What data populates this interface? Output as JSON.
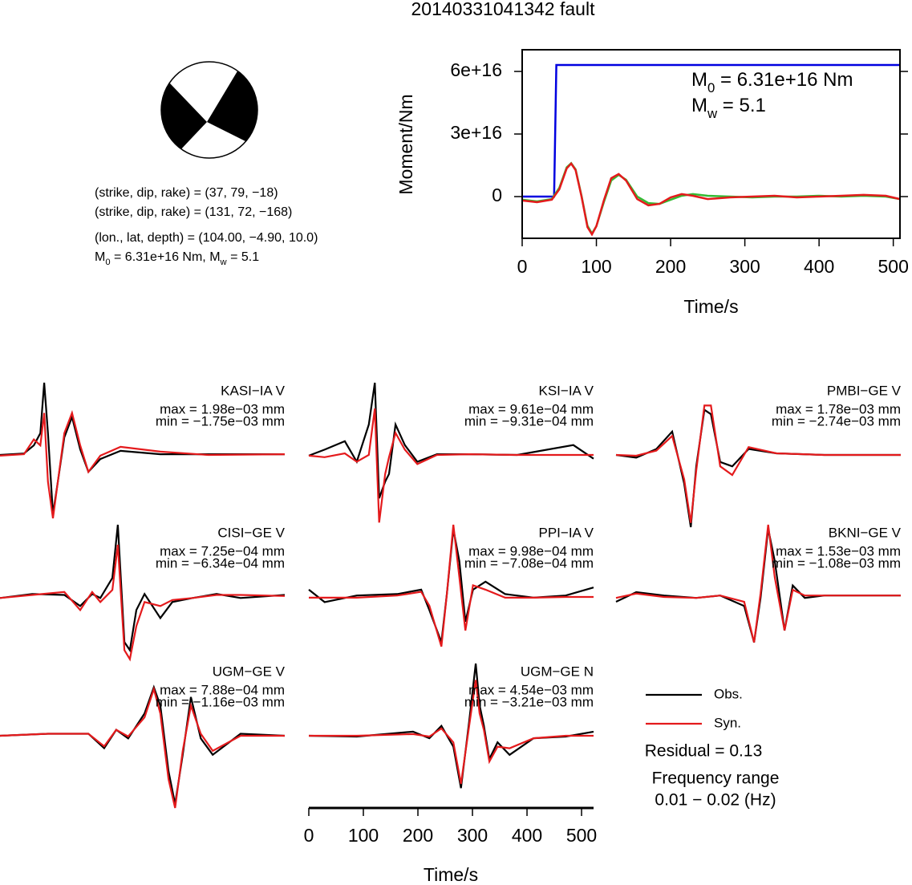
{
  "title": "20140331041342 fault",
  "source": {
    "lines": [
      "(strike, dip, rake) = (37, 79, −18)",
      "(strike, dip, rake) = (131, 72, −168)",
      "(lon., lat, depth) = (104.00, −4.90, 10.0)"
    ],
    "moment_line": [
      "M",
      "0",
      " = 6.31e+16 Nm, M",
      "w",
      " = 5.1"
    ]
  },
  "chart_data": [
    {
      "type": "line",
      "xlabel": "Time/s",
      "ylabel": "Moment/Nm",
      "xlim": [
        0,
        509
      ],
      "ylim": [
        -2e+16,
        7.04e+16
      ],
      "xticks": [
        0,
        100,
        200,
        300,
        400,
        500
      ],
      "yticks": [
        0,
        {
          "value": 3e+16,
          "label": "3e+16"
        },
        {
          "value": 6e+16,
          "label": "6e+16"
        }
      ],
      "annotations": [
        [
          "M",
          "0",
          " = 6.31e+16 Nm"
        ],
        [
          "M",
          "w",
          " = 5.1"
        ]
      ],
      "series": [
        {
          "color": "#0000e0",
          "x": [
            0,
            43,
            46,
            509
          ],
          "values": [
            0,
            0,
            6.31e+16,
            6.31e+16
          ]
        },
        {
          "color": "#33bb33",
          "x": [
            0,
            20,
            40,
            50,
            60,
            66,
            72,
            80,
            88,
            94,
            100,
            110,
            120,
            130,
            140,
            155,
            170,
            185,
            200,
            215,
            230,
            250,
            280,
            310,
            340,
            370,
            400,
            430,
            460,
            490,
            509
          ],
          "values": [
            -1500000000000000.0,
            -2300000000000000.0,
            -1200000000000000.0,
            4200000000000000.0,
            1.4e+16,
            1.6e+16,
            1.3e+16,
            400000000000000.0,
            -1.4e+16,
            -1.77e+16,
            -1.42e+16,
            -2700000000000000.0,
            7700000000000000.0,
            1.04e+16,
            8100000000000000.0,
            0,
            -3100000000000000.0,
            -3500000000000000.0,
            -1500000000000000.0,
            400000000000000.0,
            1200000000000000.0,
            400000000000000.0,
            0,
            -400000000000000.0,
            0,
            0,
            400000000000000.0,
            0,
            400000000000000.0,
            0,
            -1200000000000000.0
          ]
        },
        {
          "color": "#e41a1c",
          "x": [
            0,
            20,
            40,
            50,
            60,
            66,
            72,
            80,
            88,
            94,
            100,
            110,
            120,
            130,
            140,
            155,
            170,
            185,
            200,
            215,
            230,
            250,
            280,
            310,
            340,
            370,
            400,
            430,
            460,
            490,
            509
          ],
          "values": [
            -1900000000000000.0,
            -2700000000000000.0,
            -1500000000000000.0,
            3500000000000000.0,
            1.35e+16,
            1.58e+16,
            1.27e+16,
            0,
            -1.46e+16,
            -1.81e+16,
            -1.42e+16,
            -1900000000000000.0,
            8800000000000000.0,
            1.08e+16,
            7700000000000000.0,
            -1200000000000000.0,
            -4200000000000000.0,
            -3500000000000000.0,
            -400000000000000.0,
            1200000000000000.0,
            400000000000000.0,
            -1200000000000000.0,
            -400000000000000.0,
            0,
            400000000000000.0,
            -400000000000000.0,
            0,
            400000000000000.0,
            800000000000000.0,
            400000000000000.0,
            -1200000000000000.0
          ]
        }
      ]
    },
    {
      "type": "waveforms",
      "xlabel": "Time/s",
      "xlim": [
        0,
        522
      ],
      "xticks": [
        0,
        100,
        200,
        300,
        400,
        500
      ],
      "legend": [
        {
          "name": "Obs.",
          "color": "#000000"
        },
        {
          "name": "Syn.",
          "color": "#e41a1c"
        }
      ],
      "residual": "Residual = 0.13",
      "freq_title": "Frequency range",
      "freq_range": "0.01 − 0.02 (Hz)",
      "panels": [
        {
          "title": "KASI−IA V",
          "max": "max = 1.98e−03 mm",
          "min": "min = −1.75e−03 mm",
          "x": [
            0,
            44,
            62,
            74,
            81,
            88,
            97,
            106,
            118,
            132,
            147,
            162,
            184,
            221,
            294,
            382,
            522
          ],
          "obs": [
            0,
            4e-05,
            0.00026,
            0.00059,
            0.00196,
            0.00059,
            -0.00161,
            -0.00073,
            0.00048,
            0.00103,
            0.00015,
            -0.00046,
            -0.00011,
            0.00011,
            2e-05,
            2e-05,
            2e-05
          ],
          "syn": [
            -2e-05,
            2e-05,
            0.00042,
            0.00026,
            0.00114,
            -0.00073,
            -0.00172,
            -0.00073,
            0.00059,
            0.00114,
            0.00026,
            -0.00046,
            -2e-05,
            0.00022,
            9e-05,
            0,
            2e-05
          ]
        },
        {
          "title": "KSI−IA V",
          "max": "max = 9.61e−04 mm",
          "min": "min = −9.31e−04 mm",
          "x": [
            0,
            29,
            66,
            88,
            110,
            121,
            129,
            140,
            147,
            159,
            176,
            199,
            235,
            294,
            382,
            485,
            522
          ],
          "obs": [
            -1e-05,
            7e-05,
            0.00018,
            -9e-05,
            0.0004,
            0.00095,
            -0.00057,
            -0.00035,
            -0.00025,
            0.0004,
            0.00013,
            -9e-05,
            1e-05,
            1e-05,
            0,
            0.00013,
            -5e-05
          ],
          "syn": [
            -1e-05,
            -3e-05,
            2e-05,
            -9e-05,
            0,
            0.00061,
            -0.00089,
            -0.00025,
            -3e-05,
            0.00029,
            7e-05,
            -0.00012,
            0,
            1e-05,
            0,
            0,
            0
          ]
        },
        {
          "title": "PMBI−GE V",
          "max": "max = 1.78e−03 mm",
          "min": "min = −2.74e−03 mm",
          "x": [
            0,
            37,
            74,
            103,
            125,
            137,
            147,
            162,
            174,
            191,
            213,
            243,
            294,
            382,
            522
          ],
          "obs": [
            0,
            -0.0001,
            0.00022,
            0.00086,
            -0.00106,
            -0.00266,
            -0.00042,
            0.00166,
            0.0015,
            -0.00026,
            -0.00042,
            0.00022,
            6e-05,
            0,
            0
          ],
          "syn": [
            0,
            -3e-05,
            0.00016,
            0.0007,
            -0.0009,
            -0.0025,
            -0.00058,
            0.00182,
            0.00182,
            -0.00042,
            -0.00074,
            0.00029,
            6e-05,
            0,
            0
          ]
        },
        {
          "title": "CISI−GE V",
          "max": "max = 7.25e−04 mm",
          "min": "min = −6.34e−04 mm",
          "x": [
            0,
            59,
            118,
            147,
            169,
            184,
            206,
            216,
            228,
            238,
            250,
            265,
            294,
            316,
            353,
            397,
            441,
            522
          ],
          "obs": [
            -1e-05,
            3e-05,
            2e-05,
            -9e-05,
            3e-05,
            -1e-05,
            0.00019,
            0.00072,
            -0.00045,
            -0.00053,
            -0.00013,
            3e-05,
            -0.00021,
            -5e-05,
            -1e-05,
            3e-05,
            -1e-05,
            2e-05
          ],
          "syn": [
            -1e-05,
            2e-05,
            5e-05,
            -0.00013,
            5e-05,
            -5e-05,
            7e-05,
            0.00052,
            -0.00053,
            -0.00062,
            -0.00029,
            -5e-05,
            -9e-05,
            -3e-05,
            -1e-05,
            2e-05,
            2e-05,
            1e-05
          ]
        },
        {
          "title": "PPI−IA V",
          "max": "max = 9.98e−04 mm",
          "min": "min = −7.08e−04 mm",
          "x": [
            0,
            29,
            88,
            162,
            206,
            221,
            243,
            253,
            265,
            276,
            287,
            301,
            324,
            360,
            412,
            471,
            522
          ],
          "obs": [
            0.0001,
            -7e-05,
            2e-05,
            4e-05,
            0.0001,
            -0.00018,
            -0.00062,
            4e-05,
            0.00093,
            0.00049,
            -0.00034,
            0.0001,
            0.00021,
            4e-05,
            -1e-05,
            2e-05,
            0.00013
          ],
          "syn": [
            -1e-05,
            -1e-05,
            -1e-05,
            2e-05,
            7e-05,
            -0.00012,
            -0.00068,
            4e-05,
            0.00099,
            0.00027,
            -0.00046,
            0.00016,
            0.0001,
            -1e-05,
            -1e-05,
            0,
            0
          ]
        },
        {
          "title": "BKNI−GE V",
          "max": "max = 1.53e−03 mm",
          "min": "min = −1.08e−03 mm",
          "x": [
            0,
            37,
            88,
            147,
            191,
            235,
            253,
            265,
            279,
            291,
            309,
            324,
            346,
            382,
            441,
            522
          ],
          "obs": [
            -0.0001,
            0.0001,
            3e-05,
            -2e-05,
            3e-05,
            -0.00019,
            -0.00095,
            -2e-05,
            0.00143,
            0.00075,
            -0.0007,
            0.00024,
            -2e-05,
            3e-05,
            3e-05,
            3e-05
          ],
          "syn": [
            -2e-05,
            7e-05,
            0,
            -2e-05,
            3e-05,
            -0.0001,
            -0.00095,
            7e-05,
            0.00151,
            0.00041,
            -0.0007,
            0.00015,
            3e-05,
            3e-05,
            3e-05,
            3e-05
          ]
        },
        {
          "title": "UGM−GE V",
          "max": "max = 7.88e−04 mm",
          "min": "min = −1.16e−03 mm",
          "x": [
            0,
            88,
            162,
            191,
            213,
            235,
            265,
            282,
            294,
            309,
            321,
            335,
            350,
            368,
            390,
            441,
            522
          ],
          "obs": [
            0,
            3e-05,
            3e-05,
            -0.00019,
            9e-05,
            -4e-05,
            0.00034,
            0.00074,
            0.00046,
            -0.00054,
            -0.00104,
            -0.00029,
            0.00059,
            -4e-05,
            -0.00029,
            3e-05,
            0
          ],
          "syn": [
            0,
            3e-05,
            3e-05,
            -0.00016,
            9e-05,
            -1e-05,
            0.00028,
            0.00071,
            0.00034,
            -0.00066,
            -0.0011,
            -0.00023,
            0.00046,
            3e-05,
            -0.00023,
            0,
            0
          ]
        },
        {
          "title": "UGM−GE N",
          "max": "max = 4.54e−03 mm",
          "min": "min = −3.21e−03 mm",
          "x": [
            0,
            88,
            191,
            221,
            243,
            265,
            279,
            294,
            306,
            313,
            321,
            331,
            346,
            368,
            412,
            471,
            522
          ],
          "obs": [
            0,
            -5e-05,
            0.00025,
            -0.00015,
            0.0006,
            -0.00066,
            -0.00318,
            0.00086,
            0.00438,
            0.00186,
            0.0006,
            -0.00141,
            -0.0004,
            -0.00116,
            -0.00015,
            -5e-05,
            0.00025
          ],
          "syn": [
            0,
            0,
            0.0001,
            -5e-05,
            0.00045,
            -0.0004,
            -0.00292,
            0.0006,
            0.00338,
            0.00136,
            0.00035,
            -0.00156,
            -0.00066,
            -0.00076,
            -0.00015,
            0,
            0
          ]
        }
      ]
    }
  ]
}
